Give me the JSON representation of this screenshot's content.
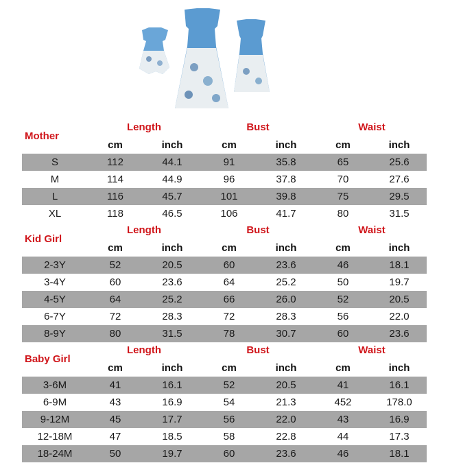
{
  "groups": [
    "Length",
    "Bust",
    "Waist"
  ],
  "units": [
    "cm",
    "inch",
    "cm",
    "inch",
    "cm",
    "inch"
  ],
  "sections": [
    {
      "title": "Mother",
      "rows": [
        [
          "S",
          "112",
          "44.1",
          "91",
          "35.8",
          "65",
          "25.6"
        ],
        [
          "M",
          "114",
          "44.9",
          "96",
          "37.8",
          "70",
          "27.6"
        ],
        [
          "L",
          "116",
          "45.7",
          "101",
          "39.8",
          "75",
          "29.5"
        ],
        [
          "XL",
          "118",
          "46.5",
          "106",
          "41.7",
          "80",
          "31.5"
        ]
      ]
    },
    {
      "title": "Kid Girl",
      "rows": [
        [
          "2-3Y",
          "52",
          "20.5",
          "60",
          "23.6",
          "46",
          "18.1"
        ],
        [
          "3-4Y",
          "60",
          "23.6",
          "64",
          "25.2",
          "50",
          "19.7"
        ],
        [
          "4-5Y",
          "64",
          "25.2",
          "66",
          "26.0",
          "52",
          "20.5"
        ],
        [
          "6-7Y",
          "72",
          "28.3",
          "72",
          "28.3",
          "56",
          "22.0"
        ],
        [
          "8-9Y",
          "80",
          "31.5",
          "78",
          "30.7",
          "60",
          "23.6"
        ]
      ]
    },
    {
      "title": "Baby Girl",
      "rows": [
        [
          "3-6M",
          "41",
          "16.1",
          "52",
          "20.5",
          "41",
          "16.1"
        ],
        [
          "6-9M",
          "43",
          "16.9",
          "54",
          "21.3",
          "452",
          "178.0"
        ],
        [
          "9-12M",
          "45",
          "17.7",
          "56",
          "22.0",
          "43",
          "16.9"
        ],
        [
          "12-18M",
          "47",
          "18.5",
          "58",
          "22.8",
          "44",
          "17.3"
        ],
        [
          "18-24M",
          "50",
          "19.7",
          "60",
          "23.6",
          "46",
          "18.1"
        ]
      ]
    }
  ],
  "colors": {
    "header": "#d0161b",
    "shade": "#a6a6a6",
    "denim": "#5b9bd1"
  }
}
